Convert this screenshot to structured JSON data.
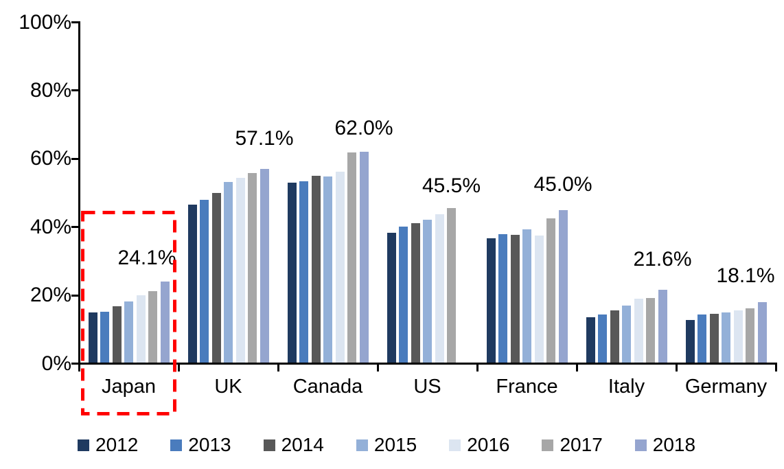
{
  "chart_data": {
    "type": "bar",
    "title": "",
    "xlabel": "",
    "ylabel": "",
    "categories": [
      "Japan",
      "UK",
      "Canada",
      "US",
      "France",
      "Italy",
      "Germany"
    ],
    "series": [
      {
        "name": "2012",
        "color": "#1F3A60",
        "values": [
          15.0,
          46.5,
          53.1,
          38.4,
          36.7,
          13.6,
          12.8
        ]
      },
      {
        "name": "2013",
        "color": "#4A7CBD",
        "values": [
          15.1,
          47.9,
          53.5,
          40.2,
          37.9,
          14.4,
          14.3
        ]
      },
      {
        "name": "2014",
        "color": "#585858",
        "values": [
          16.8,
          50.1,
          55.0,
          41.2,
          37.8,
          15.6,
          14.6
        ]
      },
      {
        "name": "2015",
        "color": "#93B0D8",
        "values": [
          18.2,
          53.2,
          54.8,
          42.2,
          39.4,
          17.1,
          14.9
        ]
      },
      {
        "name": "2016",
        "color": "#DCE5F1",
        "values": [
          20.0,
          54.5,
          56.3,
          43.8,
          37.5,
          19.1,
          15.5
        ]
      },
      {
        "name": "2017",
        "color": "#A7A7A7",
        "values": [
          21.2,
          55.9,
          61.8,
          45.5,
          42.5,
          19.3,
          16.1
        ]
      },
      {
        "name": "2018",
        "color": "#95A5CF",
        "values": [
          24.1,
          57.1,
          62.0,
          null,
          45.0,
          21.6,
          18.1
        ]
      }
    ],
    "data_labels": [
      {
        "category": "Japan",
        "text": "24.1%"
      },
      {
        "category": "UK",
        "text": "57.1%"
      },
      {
        "category": "Canada",
        "text": "62.0%"
      },
      {
        "category": "US",
        "text": "45.5%"
      },
      {
        "category": "France",
        "text": "45.0%"
      },
      {
        "category": "Italy",
        "text": "21.6%"
      },
      {
        "category": "Germany",
        "text": "18.1%"
      }
    ],
    "ylim": [
      0,
      100
    ],
    "yticks": [
      {
        "value": 0,
        "label": "0%"
      },
      {
        "value": 20,
        "label": "20%"
      },
      {
        "value": 40,
        "label": "40%"
      },
      {
        "value": 60,
        "label": "60%"
      },
      {
        "value": 80,
        "label": "80%"
      },
      {
        "value": 100,
        "label": "100%"
      }
    ],
    "grid": false,
    "legend_position": "bottom",
    "legend_labels": [
      "2012",
      "2013",
      "2014",
      "2015",
      "2016",
      "2017",
      "2018"
    ],
    "annotation": {
      "type": "red-dashed-box",
      "highlighted_category": "Japan",
      "color": "#FF0000"
    }
  },
  "colors": {
    "axis": "#000000",
    "text": "#000000",
    "background": "#FFFFFF",
    "highlight": "#FF0000"
  }
}
